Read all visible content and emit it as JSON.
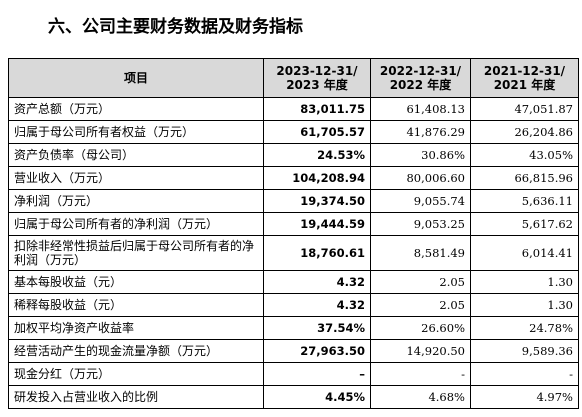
{
  "header": {
    "title": "六、公司主要财务数据及财务指标"
  },
  "table": {
    "columns": [
      "项目",
      [
        "2023-12-31/",
        "2023 年度"
      ],
      [
        "2022-12-31/",
        "2022 年度"
      ],
      [
        "2021-12-31/",
        "2021 年度"
      ]
    ],
    "rows": [
      [
        "资产总额（万元）",
        "83,011.75",
        "61,408.13",
        "47,051.87"
      ],
      [
        "归属于母公司所有者权益（万元）",
        "61,705.57",
        "41,876.29",
        "26,204.86"
      ],
      [
        "资产负债率（母公司）",
        "24.53%",
        "30.86%",
        "43.05%"
      ],
      [
        "营业收入（万元）",
        "104,208.94",
        "80,006.60",
        "66,815.96"
      ],
      [
        "净利润（万元）",
        "19,374.50",
        "9,055.74",
        "5,636.11"
      ],
      [
        "归属于母公司所有者的净利润（万元）",
        "19,444.59",
        "9,053.25",
        "5,617.62"
      ],
      [
        "扣除非经常性损益后归属于母公司所有者的净利润（万元）",
        "18,760.61",
        "8,581.49",
        "6,014.41"
      ],
      [
        "基本每股收益（元）",
        "4.32",
        "2.05",
        "1.30"
      ],
      [
        "稀释每股收益（元）",
        "4.32",
        "2.05",
        "1.30"
      ],
      [
        "加权平均净资产收益率",
        "37.54%",
        "26.60%",
        "24.78%"
      ],
      [
        "经营活动产生的现金流量净额（万元）",
        "27,963.50",
        "14,920.50",
        "9,589.36"
      ],
      [
        "现金分红（万元）",
        "–",
        "-",
        "-"
      ],
      [
        "研发投入占营业收入的比例",
        "4.45%",
        "4.68%",
        "4.97%"
      ]
    ]
  }
}
